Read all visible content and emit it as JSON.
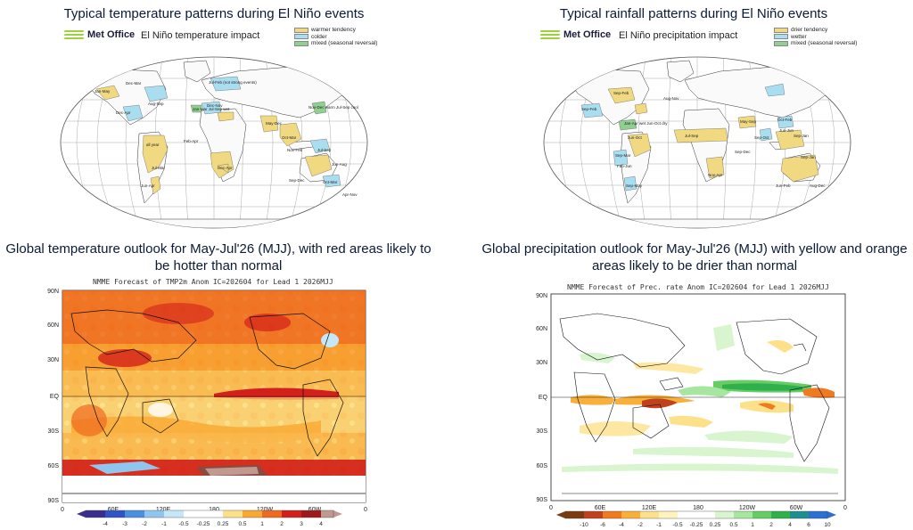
{
  "panels": {
    "top_left": {
      "heading": "Typical temperature patterns during El Niño events",
      "brand": "Met Office",
      "subtitle": "El Niño temperature impact",
      "legend": [
        {
          "label": "warmer tendency",
          "color": "#f0d980"
        },
        {
          "label": "colder",
          "color": "#a9def0"
        },
        {
          "label": "mixed (seasonal reversal)",
          "color": "#8fcf8f"
        }
      ],
      "labels": [
        "Jan-May",
        "Dec-Mar",
        "Jul-Feb (not strong events)",
        "Dec-Apr",
        "Aug-Sep",
        "Jan-Mar Jul-Sep wet",
        "Dec-Nov",
        "Nov-Dec warm Jul-Sep cool",
        "Feb-Apr",
        "May-Dec",
        "Oct-Mar",
        "all year",
        "Jul-Mar",
        "Dec-Apr",
        "Nov-Feb",
        "Jul-Sep",
        "Jun-Apr",
        "Jun-Aug",
        "Sep-Dec",
        "Oct-Mar",
        "Apr-Nov"
      ]
    },
    "top_right": {
      "heading": "Typical rainfall patterns during El Niño events",
      "brand": "Met Office",
      "subtitle": "El Niño precipitation impact",
      "legend": [
        {
          "label": "drier tendency",
          "color": "#f0d980"
        },
        {
          "label": "wetter",
          "color": "#a9def0"
        },
        {
          "label": "mixed (seasonal reversal)",
          "color": "#8fcf8f"
        }
      ],
      "labels": [
        "Sep-Feb",
        "Aug-Nov",
        "Sep-Feb",
        "Jan-Apr wet Jun-Oct dry",
        "Jun-Oct",
        "Jul-Sep",
        "May-Sep",
        "Oct-Feb",
        "Sep-Jan",
        "Sep-Oct",
        "Jun-Jun",
        "Sep-Mar",
        "Feb-Jun",
        "Sep-Dec",
        "Sep-Jan",
        "Sep-May",
        "Nov-Apr",
        "Jun-Feb",
        "Aug-Dec"
      ]
    },
    "bottom_left": {
      "heading": "Global temperature outlook for May-Jul'26 (MJJ), with red areas likely to be hotter than normal",
      "map_title": "NMME Forecast of TMP2m Anom IC=202604 for Lead 1 2026MJJ",
      "lat_labels": [
        "90N",
        "60N",
        "30N",
        "EQ",
        "30S",
        "60S",
        "90S"
      ],
      "lon_labels": [
        "0",
        "60E",
        "120E",
        "180",
        "120W",
        "60W",
        "0"
      ],
      "colorbar_labels": [
        "-4",
        "-3",
        "-2",
        "-1",
        "-0.5",
        "-0.25",
        "0.25",
        "0.5",
        "1",
        "2",
        "3",
        "4"
      ],
      "colorbar_colors": [
        "#3a2f8f",
        "#2f54c8",
        "#4a8fe0",
        "#8ec6ef",
        "#c5e7f7",
        "#ffffff",
        "#ffffff",
        "#fde18a",
        "#f9a832",
        "#ef6a1f",
        "#d3201b",
        "#a0191a",
        "#c09a90"
      ]
    },
    "bottom_right": {
      "heading": "Global precipitation outlook for May-Jul'26 (MJJ) with yellow and orange areas likely to be drier than normal",
      "map_title": "NMME Forecast of Prec. rate Anom IC=202604 for Lead 1 2026MJJ",
      "lat_labels": [
        "90N",
        "60N",
        "30N",
        "EQ",
        "30S",
        "60S",
        "90S"
      ],
      "lon_labels": [
        "0",
        "60E",
        "120E",
        "180",
        "120W",
        "60W",
        "0"
      ],
      "colorbar_labels": [
        "-10",
        "-6",
        "-4",
        "-2",
        "-1",
        "-0.5",
        "-0.25",
        "0.25",
        "0.5",
        "1",
        "2",
        "4",
        "6",
        "10"
      ],
      "colorbar_colors": [
        "#7a3b10",
        "#c0411b",
        "#ef7a1f",
        "#f9b03a",
        "#fde18a",
        "#fff4c0",
        "#ffffff",
        "#ffffff",
        "#d9f5d0",
        "#a6e6a0",
        "#66cc66",
        "#2fb04a",
        "#1e8f8f",
        "#2b6fd0"
      ]
    }
  }
}
